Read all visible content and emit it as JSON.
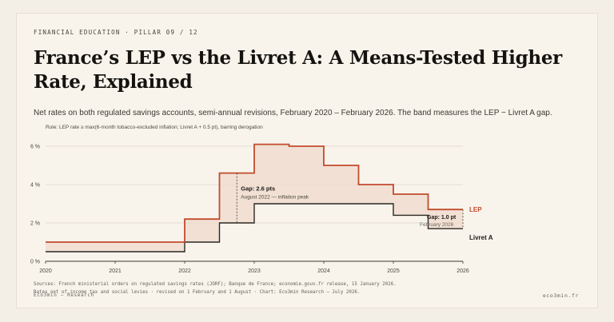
{
  "header": {
    "eyebrow": "FINANCIAL EDUCATION  ·  PILLAR 09 / 12",
    "title": "France’s LEP vs the Livret A: A Means-Tested Higher Rate, Explained",
    "subtitle": "Net rates on both regulated savings accounts, semi-annual revisions, February 2020 – February 2026. The band measures the LEP − Livret A gap.",
    "rule": "Rule: LEP rate ≥ max(6-month tobacco-excluded inflation; Livret A + 0.5 pt), barring derogation"
  },
  "footer": {
    "sources": "Sources: French ministerial orders on regulated savings rates (JORF); Banque de France; economie.gouv.fr release, 15 January 2026.",
    "notes": "Rates net of income tax and social levies · revised on 1 February and 1 August · Chart: Eco3min Research — July 2026.",
    "brand": "Eco3min — Research",
    "site": "eco3min.fr"
  },
  "colors": {
    "lep": "#c24a2c",
    "livret": "#2a2824",
    "band": "#f0d9cc",
    "grid": "#ddd6ca",
    "axis": "#3a3731"
  },
  "chart_data": {
    "type": "line",
    "step": true,
    "xlim": [
      2020,
      2026
    ],
    "ylim": [
      0,
      6
    ],
    "x_ticks": [
      2020,
      2021,
      2022,
      2023,
      2024,
      2025,
      2026
    ],
    "y_ticks": [
      0,
      2,
      4,
      6
    ],
    "y_tick_labels": [
      "0 %",
      "2 %",
      "4 %",
      "6 %"
    ],
    "grid": true,
    "series": [
      {
        "name": "LEP",
        "x": [
          2020.0,
          2022.0,
          2022.5,
          2023.0,
          2023.5,
          2024.0,
          2024.5,
          2025.0,
          2025.5,
          2026.0
        ],
        "values": [
          1.0,
          2.2,
          4.6,
          6.1,
          6.0,
          5.0,
          4.0,
          3.5,
          2.7,
          2.7
        ]
      },
      {
        "name": "Livret A",
        "x": [
          2020.0,
          2022.0,
          2022.5,
          2023.0,
          2023.5,
          2024.0,
          2024.5,
          2025.0,
          2025.5,
          2026.0
        ],
        "values": [
          0.5,
          1.0,
          2.0,
          3.0,
          3.0,
          3.0,
          3.0,
          2.4,
          1.7,
          1.7
        ]
      }
    ],
    "annotations": [
      {
        "x": 2022.75,
        "y_low": 2.0,
        "y_high": 4.6,
        "label": "Gap: 2.6 pts",
        "sublabel": "August 2022 — inflation peak"
      },
      {
        "x": 2026.0,
        "y_low": 1.7,
        "y_high": 2.7,
        "label": "Gap: 1.0 pt",
        "sublabel": "February 2026"
      }
    ],
    "end_labels": [
      "LEP",
      "Livret A"
    ]
  }
}
